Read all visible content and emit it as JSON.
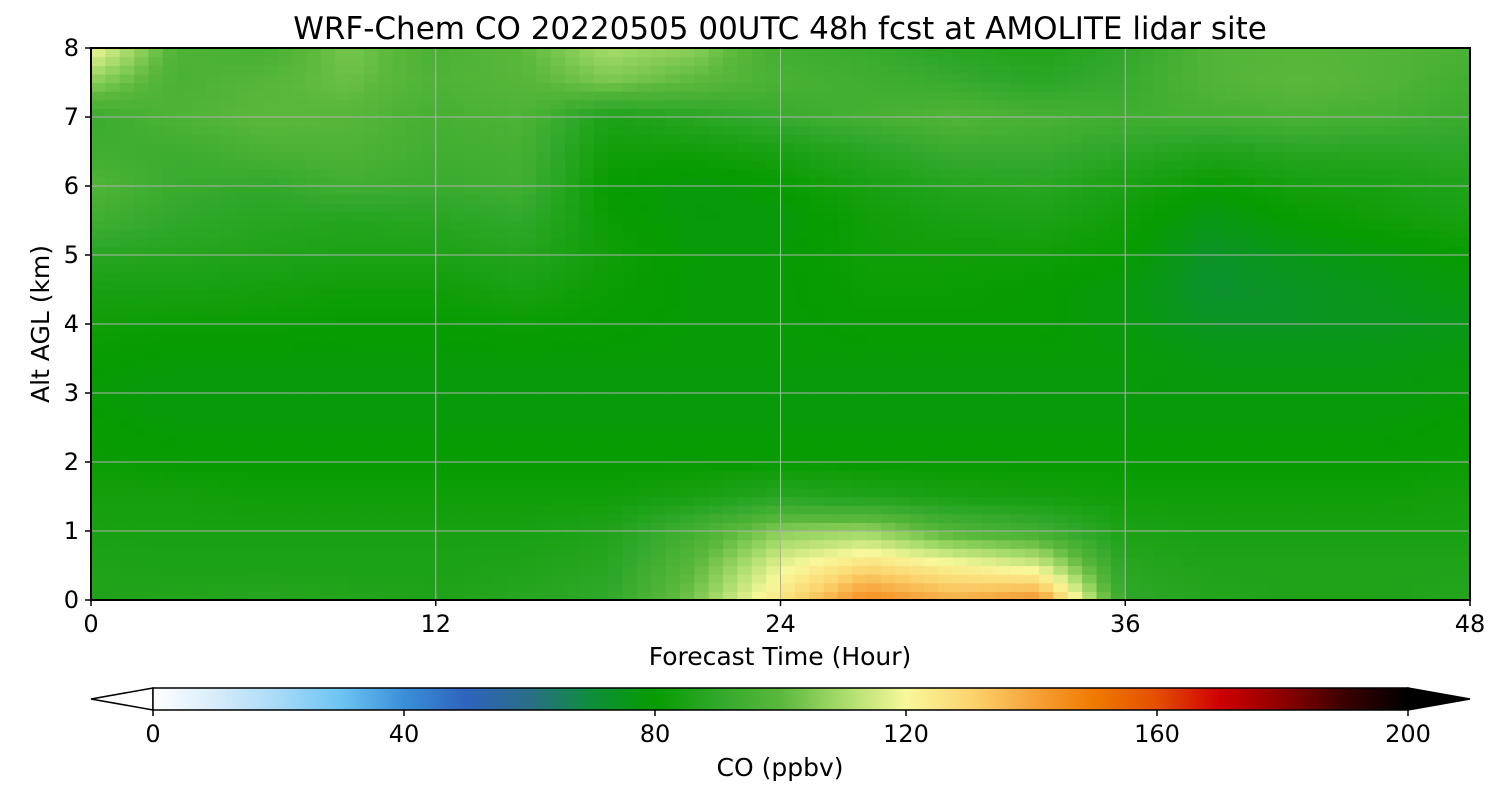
{
  "chart_data": {
    "type": "heatmap",
    "title": "WRF-Chem CO  20220505 00UTC 48h fcst at AMOLITE lidar site",
    "xlabel": "Forecast Time (Hour)",
    "ylabel": "Alt AGL (km)",
    "xlim": [
      0,
      48
    ],
    "ylim": [
      0,
      8
    ],
    "x_ticks": [
      "0",
      "12",
      "24",
      "36",
      "48"
    ],
    "y_ticks": [
      "0",
      "1",
      "2",
      "3",
      "4",
      "5",
      "6",
      "7",
      "8"
    ],
    "grid": true,
    "colorbar": {
      "label": "CO  (ppbv)",
      "range": [
        0,
        200
      ],
      "ticks": [
        "0",
        "40",
        "80",
        "120",
        "160",
        "200"
      ],
      "extend": "both",
      "placement": "bottom",
      "colors": [
        "#ffffff",
        "#d8ecfa",
        "#a8daf6",
        "#6cc4f2",
        "#3a8fd8",
        "#2f63bd",
        "#2a6e86",
        "#0d8f3a",
        "#079c00",
        "#30a82a",
        "#5ab83c",
        "#a8dc6a",
        "#f8f89a",
        "#fbd670",
        "#f7a43c",
        "#f07a00",
        "#e44e00",
        "#cf0000",
        "#8e0000",
        "#3a0000",
        "#000000"
      ]
    },
    "times": [
      0,
      3,
      6,
      9,
      12,
      15,
      18,
      21,
      24,
      27,
      30,
      33,
      36,
      39,
      42,
      45,
      48
    ],
    "altitudes_km": [
      0,
      0.5,
      1,
      1.5,
      2,
      2.5,
      3,
      3.5,
      4,
      4.5,
      5,
      5.5,
      6,
      6.5,
      7,
      7.5,
      8
    ],
    "values_ppbv": [
      [
        86,
        87,
        88,
        87,
        86,
        88,
        90,
        104,
        126,
        146,
        138,
        144,
        90,
        87,
        86,
        86,
        87
      ],
      [
        86,
        85,
        85,
        85,
        85,
        86,
        88,
        100,
        118,
        128,
        122,
        116,
        88,
        86,
        86,
        86,
        86
      ],
      [
        84,
        84,
        84,
        84,
        84,
        84,
        86,
        95,
        106,
        108,
        98,
        94,
        85,
        84,
        84,
        84,
        84
      ],
      [
        83,
        83,
        82,
        82,
        82,
        82,
        82,
        84,
        88,
        86,
        84,
        83,
        82,
        82,
        82,
        82,
        83
      ],
      [
        81,
        80,
        80,
        80,
        80,
        80,
        80,
        80,
        80,
        80,
        80,
        80,
        80,
        80,
        80,
        80,
        81
      ],
      [
        80,
        79,
        79,
        79,
        79,
        79,
        79,
        79,
        79,
        79,
        79,
        79,
        79,
        79,
        79,
        79,
        80
      ],
      [
        79,
        78,
        78,
        78,
        78,
        78,
        78,
        78,
        78,
        78,
        78,
        78,
        78,
        78,
        78,
        78,
        79
      ],
      [
        80,
        79,
        79,
        79,
        79,
        79,
        79,
        79,
        79,
        79,
        79,
        79,
        79,
        77,
        77,
        77,
        78
      ],
      [
        82,
        81,
        81,
        80,
        80,
        81,
        80,
        79,
        79,
        80,
        80,
        80,
        78,
        74,
        74,
        75,
        76
      ],
      [
        84,
        84,
        83,
        82,
        82,
        84,
        81,
        79,
        79,
        81,
        81,
        80,
        78,
        72,
        74,
        76,
        78
      ],
      [
        88,
        87,
        86,
        85,
        85,
        87,
        82,
        79,
        79,
        82,
        82,
        82,
        80,
        73,
        76,
        78,
        80
      ],
      [
        94,
        90,
        88,
        87,
        88,
        90,
        81,
        78,
        78,
        82,
        84,
        85,
        82,
        76,
        80,
        82,
        84
      ],
      [
        98,
        92,
        90,
        94,
        92,
        94,
        80,
        78,
        80,
        84,
        87,
        88,
        84,
        80,
        83,
        84,
        86
      ],
      [
        94,
        93,
        96,
        97,
        94,
        95,
        82,
        82,
        84,
        88,
        92,
        92,
        89,
        86,
        88,
        88,
        89
      ],
      [
        92,
        97,
        100,
        99,
        95,
        97,
        85,
        88,
        92,
        95,
        98,
        96,
        94,
        95,
        96,
        95,
        92
      ],
      [
        106,
        96,
        99,
        102,
        97,
        99,
        104,
        100,
        96,
        94,
        92,
        89,
        92,
        98,
        100,
        98,
        94
      ],
      [
        120,
        97,
        95,
        104,
        96,
        100,
        110,
        106,
        94,
        92,
        88,
        86,
        90,
        98,
        99,
        98,
        96
      ]
    ]
  }
}
